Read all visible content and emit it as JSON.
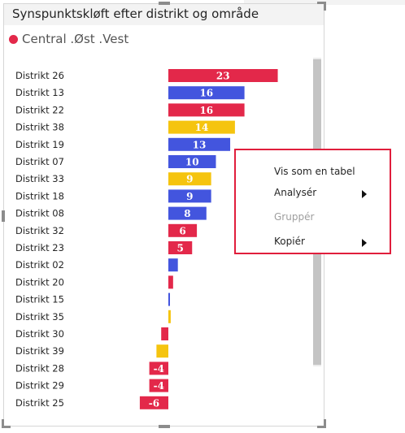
{
  "visual": {
    "title": "Synspunktskløft efter distrikt og område",
    "legend": {
      "text": "Central .Øst .Vest",
      "color": "#e3284a"
    }
  },
  "chart_data": {
    "type": "bar",
    "orientation": "horizontal",
    "title": "Synspunktskløft efter distrikt og område",
    "legend": [
      "Central",
      "Øst",
      "Vest"
    ],
    "categories": [
      "Distrikt 26",
      "Distrikt 13",
      "Distrikt 22",
      "Distrikt 38",
      "Distrikt 19",
      "Distrikt 07",
      "Distrikt 33",
      "Distrikt 18",
      "Distrikt 08",
      "Distrikt 32",
      "Distrikt 23",
      "Distrikt 02",
      "Distrikt 20",
      "Distrikt 15",
      "Distrikt 35",
      "Distrikt 30",
      "Distrikt 39",
      "Distrikt 28",
      "Distrikt 29",
      "Distrikt 25"
    ],
    "values": [
      23,
      16,
      16,
      14,
      13,
      10,
      9,
      9,
      8,
      6,
      5,
      2,
      1,
      0.3,
      0.5,
      -1.5,
      -2.5,
      -4,
      -4,
      -6
    ],
    "labels": [
      "23",
      "16",
      "16",
      "14",
      "13",
      "10",
      "9",
      "9",
      "8",
      "6",
      "5",
      "",
      "",
      "",
      "",
      "",
      "",
      "-4",
      "-4",
      "-6"
    ],
    "colors": [
      "#e3284a",
      "#4355de",
      "#e3284a",
      "#f5c40f",
      "#4355de",
      "#4355de",
      "#f5c40f",
      "#4355de",
      "#4355de",
      "#e3284a",
      "#e3284a",
      "#4355de",
      "#e3284a",
      "#4355de",
      "#f5c40f",
      "#e3284a",
      "#f5c40f",
      "#e3284a",
      "#e3284a",
      "#e3284a"
    ]
  },
  "context_menu": {
    "items": [
      {
        "label": "Vis som en tabel",
        "enabled": true,
        "submenu": false
      },
      {
        "label": "Analysér",
        "enabled": true,
        "submenu": true
      },
      {
        "label": "Gruppér",
        "enabled": false,
        "submenu": false
      },
      {
        "label": "Kopiér",
        "enabled": true,
        "submenu": true
      }
    ]
  }
}
